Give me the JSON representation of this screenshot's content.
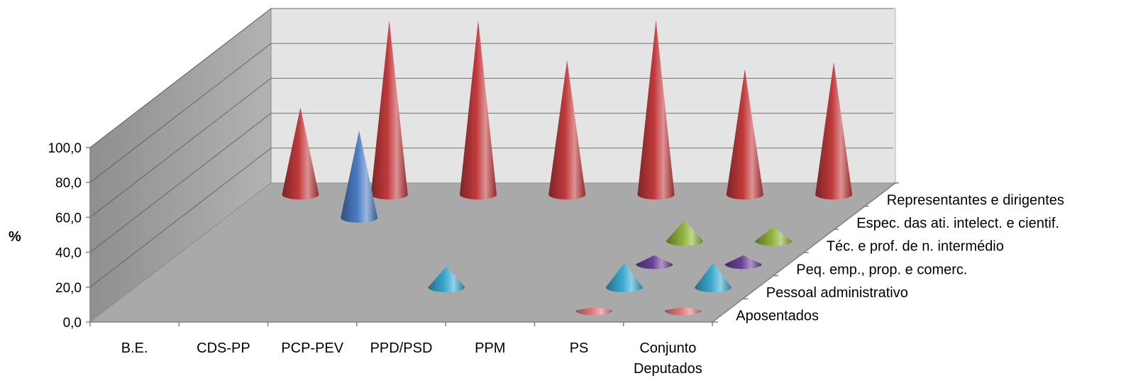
{
  "chart_data": {
    "type": "3d-cone",
    "ylabel": "%",
    "ylim": [
      0,
      100
    ],
    "yticks": [
      "0,0",
      "20,0",
      "40,0",
      "60,0",
      "80,0",
      "100,0"
    ],
    "categories": [
      "B.E.",
      "CDS-PP",
      "PCP-PEV",
      "PPD/PSD",
      "PPM",
      "PS",
      "Conjunto Deputados"
    ],
    "category_lines": [
      [
        "B.E."
      ],
      [
        "CDS-PP"
      ],
      [
        "PCP-PEV"
      ],
      [
        "PPD/PSD"
      ],
      [
        "PPM"
      ],
      [
        "PS"
      ],
      [
        "Conjunto",
        "Deputados"
      ]
    ],
    "series": [
      {
        "name": "Aposentados",
        "color": "#e07b7b",
        "values": [
          0,
          0,
          0,
          0,
          0,
          2,
          2
        ]
      },
      {
        "name": "Pessoal administrativo",
        "color": "#3aa9cf",
        "values": [
          0,
          0,
          0,
          12,
          0,
          14,
          14
        ]
      },
      {
        "name": "Peq. emp., prop. e comerc.",
        "color": "#6a3f96",
        "values": [
          0,
          0,
          0,
          0,
          0,
          5,
          5
        ]
      },
      {
        "name": "Téc. e prof. de n. intermédio",
        "color": "#8db33a",
        "values": [
          0,
          0,
          0,
          0,
          0,
          12,
          8
        ]
      },
      {
        "name": "Espec. das ati. intelect. e cientif.",
        "color": "#4a7cc2",
        "values": [
          0,
          50,
          0,
          0,
          0,
          0,
          0
        ]
      },
      {
        "name": "Representantes e dirigentes",
        "color": "#c0393b",
        "values": [
          50,
          100,
          100,
          77,
          100,
          72,
          76
        ]
      }
    ]
  }
}
